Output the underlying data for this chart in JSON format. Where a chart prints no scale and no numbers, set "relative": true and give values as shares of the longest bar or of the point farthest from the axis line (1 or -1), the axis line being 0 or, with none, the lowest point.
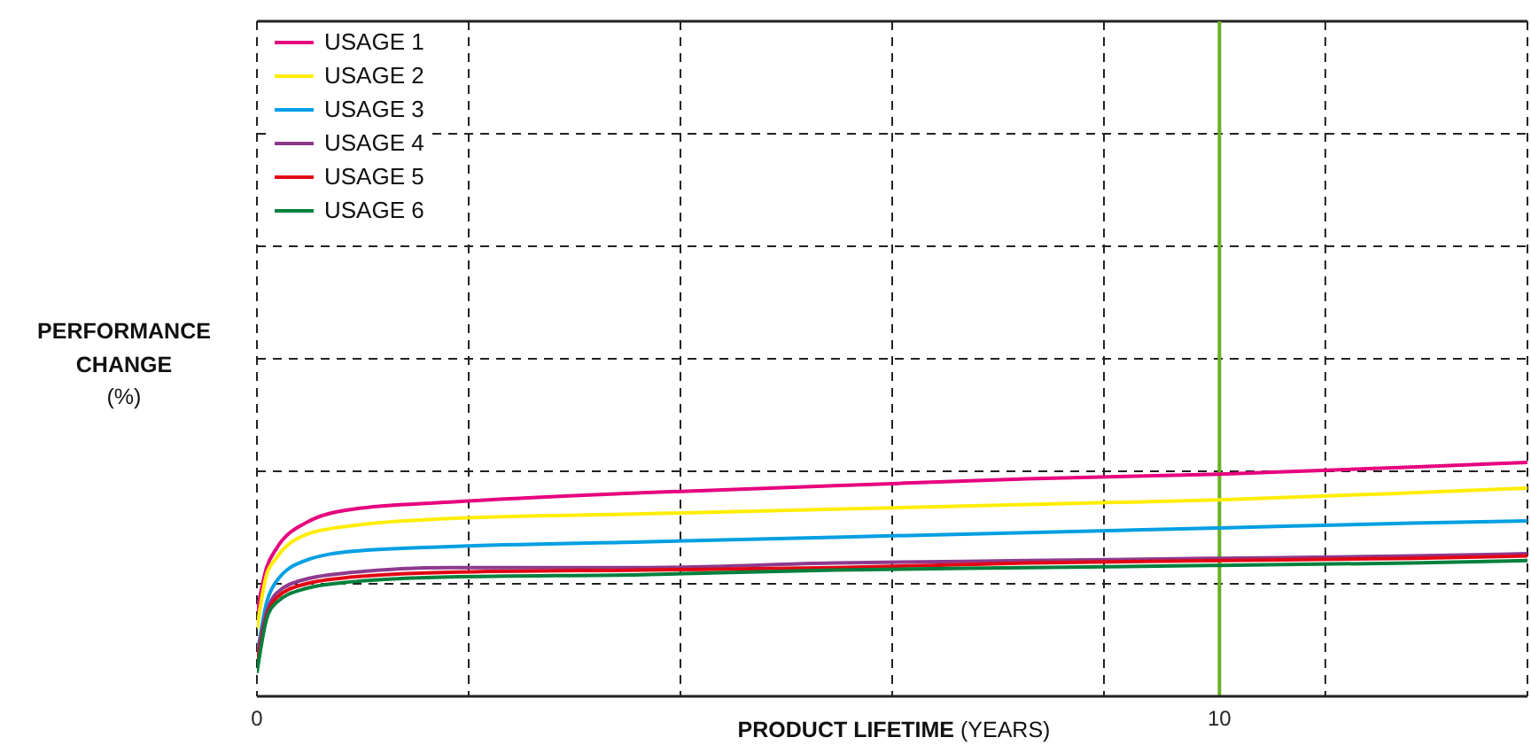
{
  "chart_data": {
    "type": "line",
    "xlabel": "PRODUCT LIFETIME (YEARS)",
    "ylabel": "PERFORMANCE CHANGE (%)",
    "relative": true,
    "x": [
      0,
      0.1,
      0.2,
      0.5,
      1,
      2,
      4,
      6,
      8,
      10,
      12,
      13.2
    ],
    "xlim": [
      0,
      13.2
    ],
    "xticks": [
      0,
      {
        "value": 2.2,
        "label": null
      },
      {
        "value": 4.4,
        "label": null
      },
      {
        "value": 6.6,
        "label": null
      },
      {
        "value": 8.8,
        "label": null
      },
      10,
      {
        "value": 11.1,
        "label": null
      }
    ],
    "grid": true,
    "legend": "top left",
    "marker": "none",
    "line_style": "solid",
    "ref_lines": [
      {
        "axis": "x",
        "value": 10,
        "label": null,
        "color": "#6ab023"
      }
    ],
    "series": [
      {
        "name": "USAGE 1",
        "color": "#e6007e",
        "values": [
          0.36,
          0.55,
          0.63,
          0.74,
          0.8,
          0.83,
          0.87,
          0.9,
          0.93,
          0.95,
          0.98,
          1
        ]
      },
      {
        "name": "USAGE 2",
        "color": "#ffed00",
        "values": [
          0.29,
          0.52,
          0.59,
          0.69,
          0.73,
          0.76,
          0.78,
          0.8,
          0.82,
          0.84,
          0.87,
          0.89
        ]
      },
      {
        "name": "USAGE 3",
        "color": "#009fe3",
        "values": [
          0.17,
          0.4,
          0.49,
          0.58,
          0.62,
          0.64,
          0.66,
          0.68,
          0.7,
          0.72,
          0.74,
          0.75
        ]
      },
      {
        "name": "USAGE 4",
        "color": "#8e3a8e",
        "values": [
          0.17,
          0.36,
          0.44,
          0.5,
          0.53,
          0.55,
          0.55,
          0.57,
          0.58,
          0.59,
          0.6,
          0.61
        ]
      },
      {
        "name": "USAGE 5",
        "color": "#e30613",
        "values": [
          0.14,
          0.34,
          0.42,
          0.48,
          0.51,
          0.53,
          0.54,
          0.55,
          0.57,
          0.58,
          0.59,
          0.6
        ]
      },
      {
        "name": "USAGE 6",
        "color": "#00803c",
        "values": [
          0.1,
          0.33,
          0.4,
          0.46,
          0.49,
          0.51,
          0.52,
          0.54,
          0.55,
          0.56,
          0.57,
          0.58
        ]
      }
    ]
  }
}
